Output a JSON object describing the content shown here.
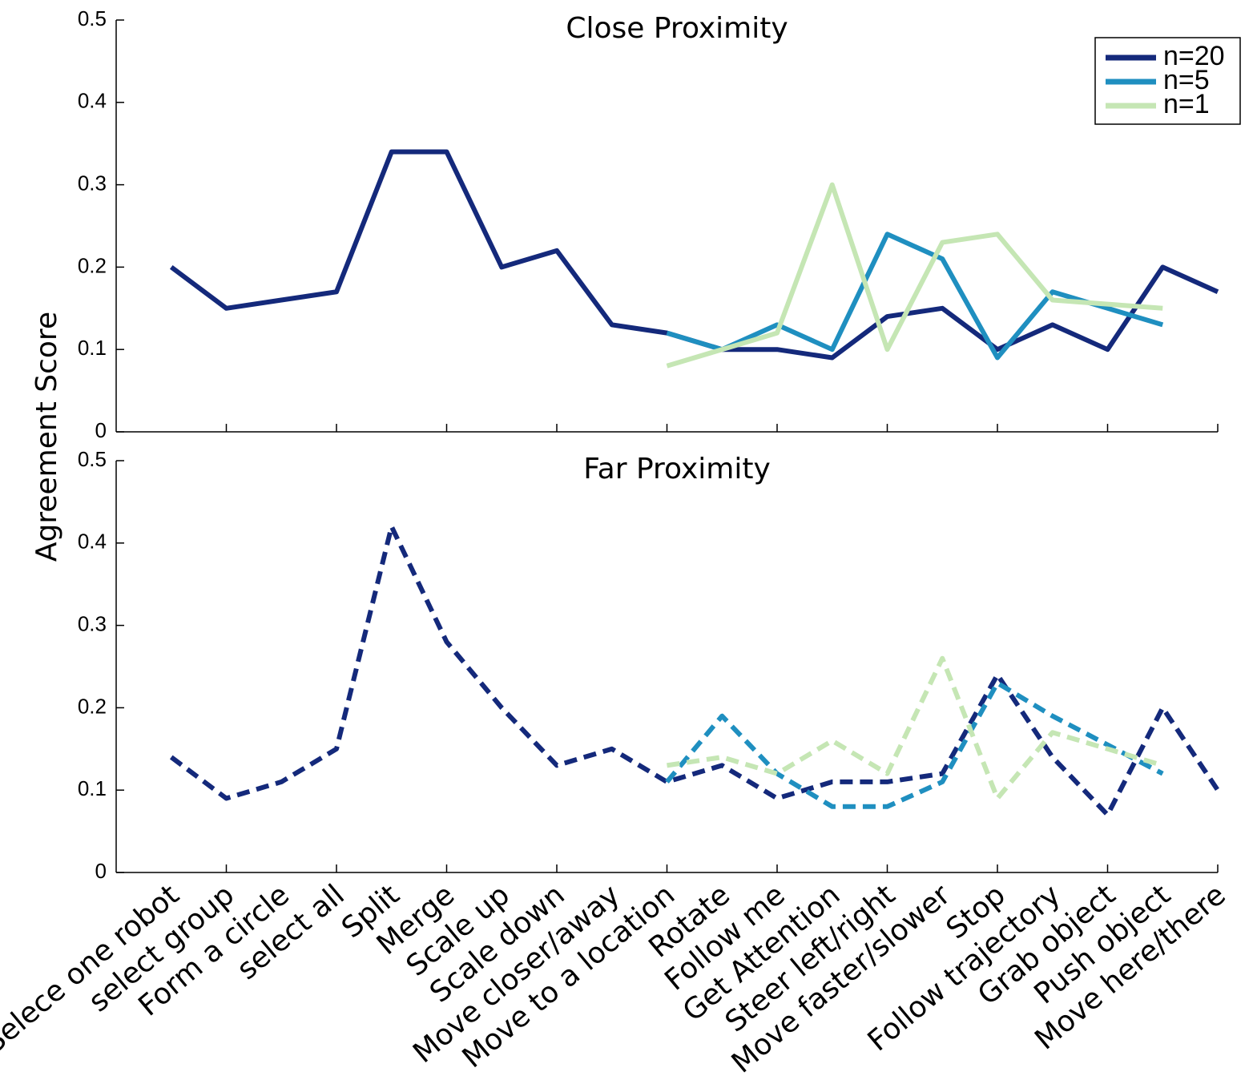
{
  "chart_data": [
    {
      "type": "line",
      "title": "Close Proximity",
      "ylabel": "Agreement Score",
      "xlim": [
        0,
        20
      ],
      "xticks": [
        2,
        4,
        6,
        8,
        10,
        12,
        14,
        16,
        18,
        20
      ],
      "ylim": [
        0,
        0.5
      ],
      "yticks": [
        0,
        0.1,
        0.2,
        0.3,
        0.4,
        0.5
      ],
      "legend": "upper right",
      "linestyle": "solid",
      "series": [
        {
          "name": "n=20",
          "color": "#14297b",
          "values": [
            0.2,
            0.15,
            0.16,
            0.17,
            0.34,
            0.34,
            0.2,
            0.22,
            0.13,
            0.12,
            0.1,
            0.1,
            0.09,
            0.14,
            0.15,
            0.1,
            0.13,
            0.1,
            0.2,
            0.17
          ]
        },
        {
          "name": "n=5",
          "color": "#1f8fc0",
          "values": [
            null,
            null,
            null,
            null,
            null,
            null,
            null,
            null,
            null,
            0.12,
            0.1,
            0.13,
            0.1,
            0.24,
            0.21,
            0.09,
            0.17,
            0.15,
            0.13,
            null
          ]
        },
        {
          "name": "n=1",
          "color": "#c5e6b4",
          "values": [
            null,
            null,
            null,
            null,
            null,
            null,
            null,
            null,
            null,
            0.08,
            0.1,
            0.12,
            0.3,
            0.1,
            0.23,
            0.24,
            0.16,
            0.155,
            0.15,
            null
          ]
        }
      ]
    },
    {
      "type": "line",
      "title": "Far Proximity",
      "categories": [
        "Selece one robot",
        "select group",
        "Form a circle",
        "select all",
        "Split",
        "Merge",
        "Scale up",
        "Scale down",
        "Move closer/away",
        "Move to a location",
        "Rotate",
        "Follow me",
        "Get Attention",
        "Steer left/right",
        "Move faster/slower",
        "Stop",
        "Follow trajectory",
        "Grab object",
        "Push object",
        "Move here/there"
      ],
      "xlim": [
        0,
        20
      ],
      "xticks": [
        2,
        4,
        6,
        8,
        10,
        12,
        14,
        16,
        18,
        20
      ],
      "ylim": [
        0,
        0.5
      ],
      "yticks": [
        0,
        0.1,
        0.2,
        0.3,
        0.4,
        0.5
      ],
      "linestyle": "dashed",
      "series": [
        {
          "color": "#14297b",
          "values": [
            0.14,
            0.09,
            0.11,
            0.15,
            0.42,
            0.28,
            0.2,
            0.13,
            0.15,
            0.11,
            0.13,
            0.09,
            0.11,
            0.11,
            0.12,
            0.24,
            0.14,
            0.07,
            0.2,
            0.1
          ]
        },
        {
          "color": "#1f8fc0",
          "values": [
            null,
            null,
            null,
            null,
            null,
            null,
            null,
            null,
            null,
            0.11,
            0.19,
            0.12,
            0.08,
            0.08,
            0.11,
            0.23,
            0.19,
            0.155,
            0.12,
            null
          ]
        },
        {
          "color": "#c5e6b4",
          "values": [
            null,
            null,
            null,
            null,
            null,
            null,
            null,
            null,
            null,
            0.13,
            0.14,
            0.12,
            0.16,
            0.12,
            0.26,
            0.09,
            0.17,
            0.15,
            0.13,
            null
          ]
        }
      ]
    }
  ]
}
